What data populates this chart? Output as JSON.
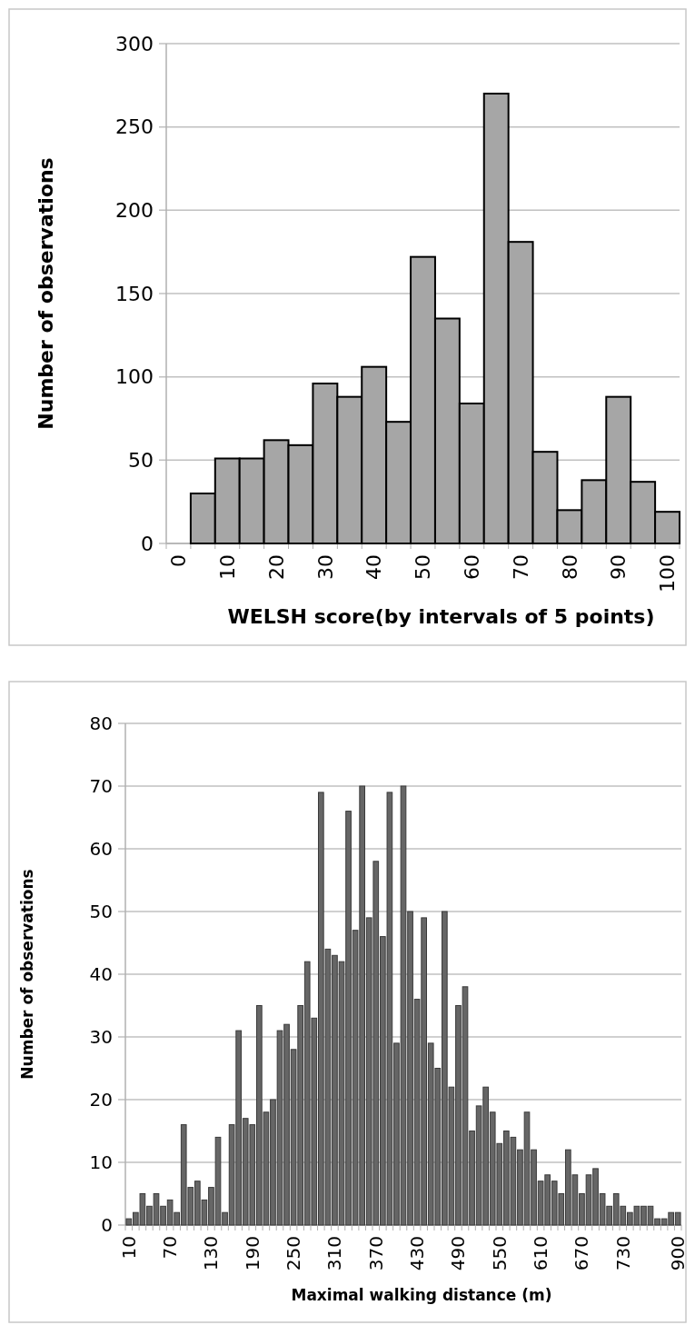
{
  "chart_data": [
    {
      "type": "bar",
      "xlabel": "WELSH score(by intervals of 5 points)",
      "ylabel": "Number of observations",
      "categories": [
        "0",
        null,
        "10",
        null,
        "20",
        null,
        "30",
        null,
        "40",
        null,
        "50",
        null,
        "60",
        null,
        "70",
        null,
        "80",
        null,
        "90",
        null,
        "100"
      ],
      "series": [
        {
          "color": "#a6a6a6",
          "values": [
            0,
            30,
            51,
            51,
            62,
            59,
            96,
            88,
            106,
            73,
            172,
            135,
            84,
            270,
            181,
            55,
            20,
            38,
            88,
            37,
            19
          ]
        }
      ],
      "ylim": [
        0,
        300
      ],
      "yticks": [
        0,
        50,
        100,
        150,
        200,
        250,
        300
      ],
      "grid": "y"
    },
    {
      "type": "bar",
      "xlabel": "Maximal walking distance (m)",
      "ylabel": "Number of observations",
      "categories": [
        "10",
        null,
        null,
        null,
        null,
        null,
        "70",
        null,
        null,
        null,
        null,
        null,
        "130",
        null,
        null,
        null,
        null,
        null,
        "190",
        null,
        null,
        null,
        null,
        null,
        "250",
        null,
        null,
        null,
        null,
        null,
        "310",
        null,
        null,
        null,
        null,
        null,
        "370",
        null,
        null,
        null,
        null,
        null,
        "430",
        null,
        null,
        null,
        null,
        null,
        "490",
        null,
        null,
        null,
        null,
        null,
        "550",
        null,
        null,
        null,
        null,
        null,
        "610",
        null,
        null,
        null,
        null,
        null,
        "670",
        null,
        null,
        null,
        null,
        null,
        "730",
        null,
        null,
        null,
        null,
        null,
        null,
        null,
        "900"
      ],
      "series": [
        {
          "color": "#666666",
          "values": [
            1,
            2,
            5,
            3,
            5,
            3,
            4,
            2,
            16,
            6,
            7,
            4,
            6,
            14,
            2,
            16,
            31,
            17,
            16,
            35,
            18,
            20,
            31,
            32,
            28,
            35,
            42,
            33,
            69,
            44,
            43,
            42,
            66,
            47,
            70,
            49,
            58,
            46,
            69,
            29,
            70,
            50,
            36,
            49,
            29,
            25,
            50,
            22,
            35,
            38,
            15,
            19,
            22,
            18,
            13,
            15,
            14,
            12,
            18,
            12,
            7,
            8,
            7,
            5,
            12,
            8,
            5,
            8,
            9,
            5,
            3,
            5,
            3,
            2,
            3,
            3,
            3,
            1,
            1,
            2,
            2
          ]
        }
      ],
      "ylim": [
        0,
        80
      ],
      "yticks": [
        0,
        10,
        20,
        30,
        40,
        50,
        60,
        70,
        80
      ],
      "grid": "y"
    }
  ]
}
